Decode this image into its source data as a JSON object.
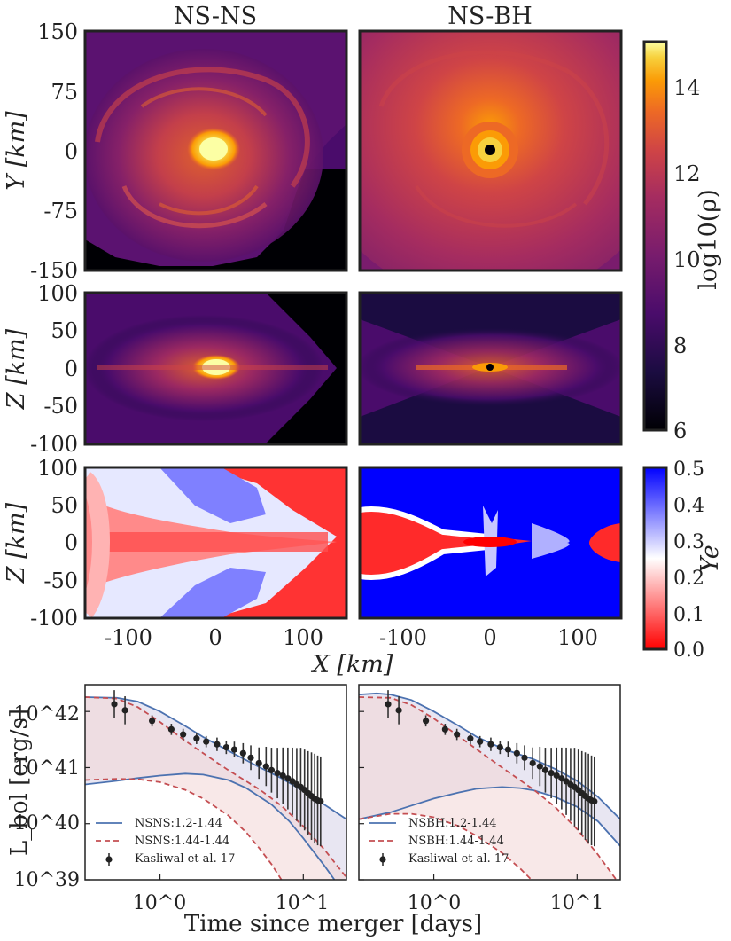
{
  "titles": {
    "left": "NS-NS",
    "right": "NS-BH"
  },
  "density_panels": {
    "ylabel_top": "Y [km]",
    "ylabel_mid": "Z [km]",
    "ylabel_bot": "Z [km]",
    "yticks_top": [
      "150",
      "75",
      "0",
      "-75",
      "-150"
    ],
    "yticks_mid": [
      "100",
      "50",
      "0",
      "-50",
      "-100"
    ],
    "yticks_bot": [
      "100",
      "50",
      "0",
      "-50",
      "-100"
    ],
    "xticks": [
      "-100",
      "0",
      "100"
    ],
    "xlabel": "X [km]"
  },
  "colorbars": {
    "rho": {
      "label": "log10(ρ)",
      "ticks": [
        "14",
        "12",
        "10",
        "8",
        "6"
      ],
      "range": [
        6,
        15
      ]
    },
    "ye": {
      "label": "Ye",
      "ticks": [
        "0.5",
        "0.4",
        "0.3",
        "0.2",
        "0.1",
        "0.0"
      ],
      "range": [
        0.0,
        0.5
      ]
    }
  },
  "chart_data": {
    "type": "line",
    "title": "",
    "xlabel": "Time since merger [days]",
    "ylabel": "L_bol [erg/s]",
    "xscale": "log",
    "yscale": "log",
    "xlim": [
      0.3,
      20
    ],
    "ylim": [
      1e+39,
      3e+42
    ],
    "xtick_labels": [
      "10^0",
      "10^1"
    ],
    "ytick_labels": [
      "10^42",
      "10^41",
      "10^40",
      "10^39"
    ],
    "observations": {
      "name": "Kasliwal et al. 17",
      "t": [
        0.48,
        0.57,
        0.88,
        1.2,
        1.45,
        1.8,
        2.1,
        2.5,
        2.9,
        3.3,
        3.8,
        4.3,
        4.9,
        5.5,
        6.0,
        6.6,
        7.2,
        7.8,
        8.4,
        9.0,
        9.6,
        10.2,
        10.8,
        11.4,
        12.0,
        12.6,
        13.2
      ],
      "L": [
        1.35e+42,
        1.05e+42,
        6.8e+41,
        4.8e+41,
        3.9e+41,
        3.3e+41,
        2.9e+41,
        2.6e+41,
        2.3e+41,
        2.1e+41,
        1.8e+41,
        1.5e+41,
        1.2e+41,
        1.05e+41,
        9e+40,
        8e+40,
        7.2e+40,
        6.4e+40,
        5.7e+40,
        5e+40,
        4.5e+40,
        4e+40,
        3.5e+40,
        3.1e+40,
        2.8e+40,
        2.6e+40,
        2.5e+40
      ],
      "err_dex": [
        0.25,
        0.25,
        0.1,
        0.1,
        0.1,
        0.1,
        0.1,
        0.12,
        0.12,
        0.14,
        0.18,
        0.22,
        0.28,
        0.35,
        0.4,
        0.45,
        0.5,
        0.55,
        0.6,
        0.65,
        0.7,
        0.72,
        0.75,
        0.78,
        0.8,
        0.8,
        0.8
      ]
    },
    "panels": [
      {
        "legend": [
          "NSNS:1.2-1.44",
          "NSNS:1.44-1.44",
          "Kasliwal et al. 17"
        ],
        "series": [
          {
            "name": "NSNS:1.2-1.44 upper",
            "t": [
              0.3,
              0.5,
              0.7,
              1.0,
              1.5,
              2.0,
              3.0,
              5.0,
              7.0,
              10.0,
              14.0,
              20.0
            ],
            "L": [
              1.8e+42,
              1.75e+42,
              1.5e+42,
              1e+42,
              5.5e+41,
              3.5e+41,
              2e+41,
              1e+41,
              6.5e+40,
              3.8e+40,
              2.2e+40,
              1.2e+40
            ]
          },
          {
            "name": "NSNS:1.2-1.44 lower",
            "t": [
              0.3,
              0.5,
              0.7,
              1.0,
              1.5,
              2.0,
              3.0,
              4.0,
              6.0,
              8.0,
              10.0,
              14.0,
              20.0
            ],
            "L": [
              5e+40,
              5.8e+40,
              6.5e+40,
              7.2e+40,
              7.8e+40,
              7.5e+40,
              6e+40,
              4.3e+40,
              2.2e+40,
              1.1e+40,
              5.5e+39,
              1.8e+39,
              5e+38
            ]
          },
          {
            "name": "NSNS:1.44-1.44 upper",
            "t": [
              0.3,
              0.5,
              0.7,
              1.0,
              1.5,
              2.0,
              3.0,
              5.0,
              7.0,
              10.0,
              14.0,
              20.0
            ],
            "L": [
              1.8e+42,
              1.7e+42,
              1.2e+42,
              6.5e+41,
              3e+41,
              1.8e+41,
              9e+40,
              4e+40,
              2.1e+40,
              9e+39,
              3.5e+39,
              1.1e+39
            ]
          },
          {
            "name": "NSNS:1.44-1.44 lower",
            "t": [
              0.3,
              0.5,
              0.7,
              1.0,
              1.5,
              2.0,
              3.0,
              4.0,
              5.0,
              6.0,
              8.0,
              10.0
            ],
            "L": [
              6e+40,
              6.3e+40,
              6.2e+40,
              5.5e+40,
              4e+40,
              2.8e+40,
              1.4e+40,
              7e+39,
              3.5e+39,
              1.9e+39,
              6e+38,
              2e+38
            ]
          }
        ]
      },
      {
        "legend": [
          "NSBH:1.2-1.44",
          "NSBH:1.44-1.44",
          "Kasliwal et al. 17"
        ],
        "series": [
          {
            "name": "NSBH:1.2-1.44 upper",
            "t": [
              0.3,
              0.4,
              0.5,
              0.7,
              1.0,
              1.5,
              2.0,
              3.0,
              4.0,
              5.0,
              7.0,
              10.0,
              14.0,
              20.0
            ],
            "L": [
              2e+42,
              2.1e+42,
              2e+42,
              1.6e+42,
              1e+42,
              5.5e+41,
              3.5e+41,
              2.2e+41,
              1.7e+41,
              1.4e+41,
              9.5e+40,
              5.8e+40,
              3e+40,
              1.2e+40
            ]
          },
          {
            "name": "NSBH:1.2-1.44 lower",
            "t": [
              0.3,
              0.5,
              0.7,
              1.0,
              1.5,
              2.0,
              3.0,
              4.0,
              5.0,
              7.0,
              10.0,
              14.0,
              20.0
            ],
            "L": [
              1.2e+40,
              1.6e+40,
              2.1e+40,
              2.8e+40,
              3.6e+40,
              4.2e+40,
              4.5e+40,
              4.3e+40,
              3.9e+40,
              3e+40,
              2e+40,
              1.1e+40,
              4e+39
            ]
          },
          {
            "name": "NSBH:1.44-1.44 upper",
            "t": [
              0.3,
              0.5,
              0.7,
              1.0,
              1.5,
              2.0,
              3.0,
              5.0,
              7.0,
              10.0,
              14.0,
              20.0
            ],
            "L": [
              1.8e+42,
              1.75e+42,
              1.3e+42,
              7.5e+41,
              3.6e+41,
              2.1e+41,
              1e+41,
              4e+40,
              2e+40,
              8e+39,
              2.8e+39,
              8e+38
            ]
          },
          {
            "name": "NSBH:1.44-1.44 lower",
            "t": [
              0.3,
              0.5,
              0.7,
              1.0,
              1.5,
              2.0,
              3.0,
              4.0,
              5.0,
              7.0,
              10.0
            ],
            "L": [
              1.2e+40,
              1.5e+40,
              1.5e+40,
              1.3e+40,
              9e+39,
              6e+39,
              3e+39,
              1.6e+39,
              9e+38,
              3e+38,
              1e+38
            ]
          }
        ]
      }
    ]
  }
}
